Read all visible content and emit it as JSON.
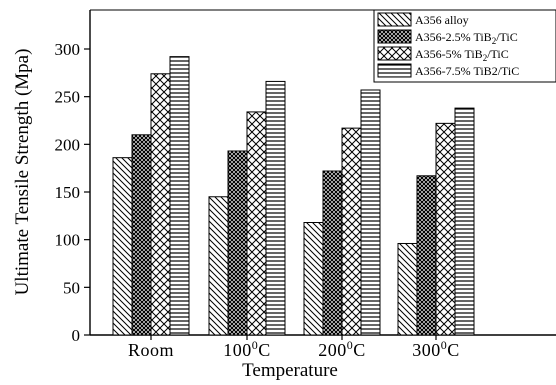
{
  "chart_data": {
    "type": "bar",
    "xlabel": "Temperature",
    "ylabel": "Ultimate Tensile Strength (Mpa)",
    "ylim": [
      0,
      300
    ],
    "yticks": [
      0,
      50,
      100,
      150,
      200,
      250,
      300
    ],
    "categories": [
      {
        "base": "Room",
        "sup": ""
      },
      {
        "base": "100",
        "sup": "0",
        "suffix": "C"
      },
      {
        "base": "200",
        "sup": "0",
        "suffix": "C"
      },
      {
        "base": "300",
        "sup": "0",
        "suffix": "C"
      }
    ],
    "series": [
      {
        "name": "A356 alloy",
        "pattern": "diag-back",
        "values": [
          186,
          145,
          118,
          96
        ]
      },
      {
        "name": "A356-2.5% TiB2/TiC",
        "label_parts": [
          "A356-2.5% TiB",
          "2",
          "/TiC"
        ],
        "pattern": "dots",
        "values": [
          210,
          193,
          172,
          167
        ]
      },
      {
        "name": "A356-5% TiB2/TiC",
        "label_parts": [
          "A356-5% TiB",
          "2",
          "/TiC"
        ],
        "pattern": "cross",
        "values": [
          274,
          234,
          217,
          222
        ]
      },
      {
        "name": "A356-7.5% TiB2/TiC",
        "label_parts": [
          "A356-7.5% TiB2/TiC",
          "",
          ""
        ],
        "pattern": "hlines",
        "values": [
          292,
          266,
          257,
          238
        ]
      }
    ],
    "legend_position": "top-right",
    "grid": false
  }
}
